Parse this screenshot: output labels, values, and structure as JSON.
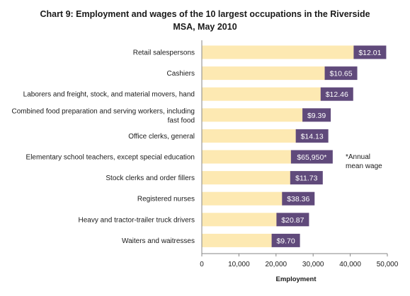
{
  "chart_data": {
    "type": "bar",
    "orientation": "horizontal",
    "title_line1": "Chart 9: Employment and wages of the 10 largest occupations  in the Riverside",
    "title_line2": "MSA, May 2010",
    "xlabel": "Employment",
    "xlim": [
      0,
      50000
    ],
    "xticks": [
      "0",
      "10,000",
      "20,000",
      "30,000",
      "40,000",
      "50,000"
    ],
    "xtick_values": [
      0,
      10000,
      20000,
      30000,
      40000,
      50000
    ],
    "categories": [
      "Retail salespersons",
      "Cashiers",
      "Laborers and freight, stock, and material movers, hand",
      "Combined food preparation and serving workers, including|fast food",
      "Office clerks, general",
      "Elementary school teachers, except special education",
      "Stock clerks and order fillers",
      "Registered nurses",
      "Heavy and tractor-trailer truck drivers",
      "Waiters and waitresses"
    ],
    "values": [
      41300,
      33500,
      32400,
      27500,
      25700,
      24400,
      24200,
      22000,
      20500,
      19200
    ],
    "wage_labels": [
      "$12.01",
      "$10.65",
      "$12.46",
      "$9.39",
      "$14.13",
      "$65,950*",
      "$11.73",
      "$38.36",
      "$20.87",
      "$9.70"
    ],
    "note_line1": "*Annual",
    "note_line2": "mean wage",
    "colors": {
      "bar": "#fde9b2",
      "label_box": "#604a7b",
      "axis": "#868686"
    }
  }
}
